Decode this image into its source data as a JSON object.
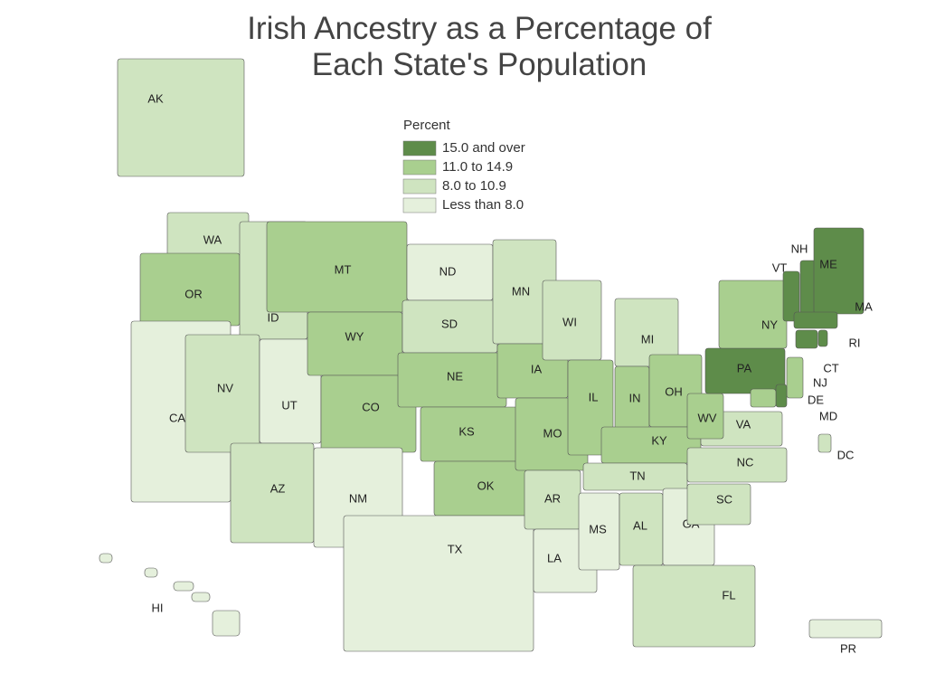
{
  "title": "Irish Ancestry as a Percentage of Each State's Population",
  "legend": {
    "title": "Percent",
    "classes": [
      {
        "label": "15.0 and over",
        "color": "#5e8c4a"
      },
      {
        "label": "11.0 to 14.9",
        "color": "#a9cf8f"
      },
      {
        "label": "8.0 to 10.9",
        "color": "#cfe4c0"
      },
      {
        "label": "Less than 8.0",
        "color": "#e5f0dc"
      }
    ]
  },
  "states": [
    {
      "label": "AK",
      "class": 2
    },
    {
      "label": "WA",
      "class": 2
    },
    {
      "label": "OR",
      "class": 1
    },
    {
      "label": "CA",
      "class": 3
    },
    {
      "label": "ID",
      "class": 2
    },
    {
      "label": "NV",
      "class": 2
    },
    {
      "label": "UT",
      "class": 3
    },
    {
      "label": "AZ",
      "class": 2
    },
    {
      "label": "MT",
      "class": 1
    },
    {
      "label": "WY",
      "class": 1
    },
    {
      "label": "CO",
      "class": 1
    },
    {
      "label": "NM",
      "class": 3
    },
    {
      "label": "ND",
      "class": 3
    },
    {
      "label": "SD",
      "class": 2
    },
    {
      "label": "NE",
      "class": 1
    },
    {
      "label": "KS",
      "class": 1
    },
    {
      "label": "OK",
      "class": 1
    },
    {
      "label": "TX",
      "class": 3
    },
    {
      "label": "MN",
      "class": 2
    },
    {
      "label": "IA",
      "class": 1
    },
    {
      "label": "MO",
      "class": 1
    },
    {
      "label": "AR",
      "class": 2
    },
    {
      "label": "LA",
      "class": 3
    },
    {
      "label": "WI",
      "class": 2
    },
    {
      "label": "IL",
      "class": 1
    },
    {
      "label": "MI",
      "class": 2
    },
    {
      "label": "IN",
      "class": 1
    },
    {
      "label": "OH",
      "class": 1
    },
    {
      "label": "KY",
      "class": 1
    },
    {
      "label": "TN",
      "class": 2
    },
    {
      "label": "MS",
      "class": 3
    },
    {
      "label": "AL",
      "class": 2
    },
    {
      "label": "GA",
      "class": 3
    },
    {
      "label": "FL",
      "class": 2
    },
    {
      "label": "SC",
      "class": 2
    },
    {
      "label": "NC",
      "class": 2
    },
    {
      "label": "VA",
      "class": 2
    },
    {
      "label": "WV",
      "class": 1
    },
    {
      "label": "PA",
      "class": 0
    },
    {
      "label": "NY",
      "class": 1
    },
    {
      "label": "VT",
      "class": 0
    },
    {
      "label": "NH",
      "class": 0
    },
    {
      "label": "ME",
      "class": 0
    },
    {
      "label": "MA",
      "class": 0
    },
    {
      "label": "CT",
      "class": 0
    },
    {
      "label": "RI",
      "class": 0
    },
    {
      "label": "NJ",
      "class": 1
    },
    {
      "label": "DE",
      "class": 0
    },
    {
      "label": "MD",
      "class": 1
    },
    {
      "label": "DC",
      "class": 2
    },
    {
      "label": "HI",
      "class": 3
    },
    {
      "label": "PR",
      "class": 3
    }
  ]
}
